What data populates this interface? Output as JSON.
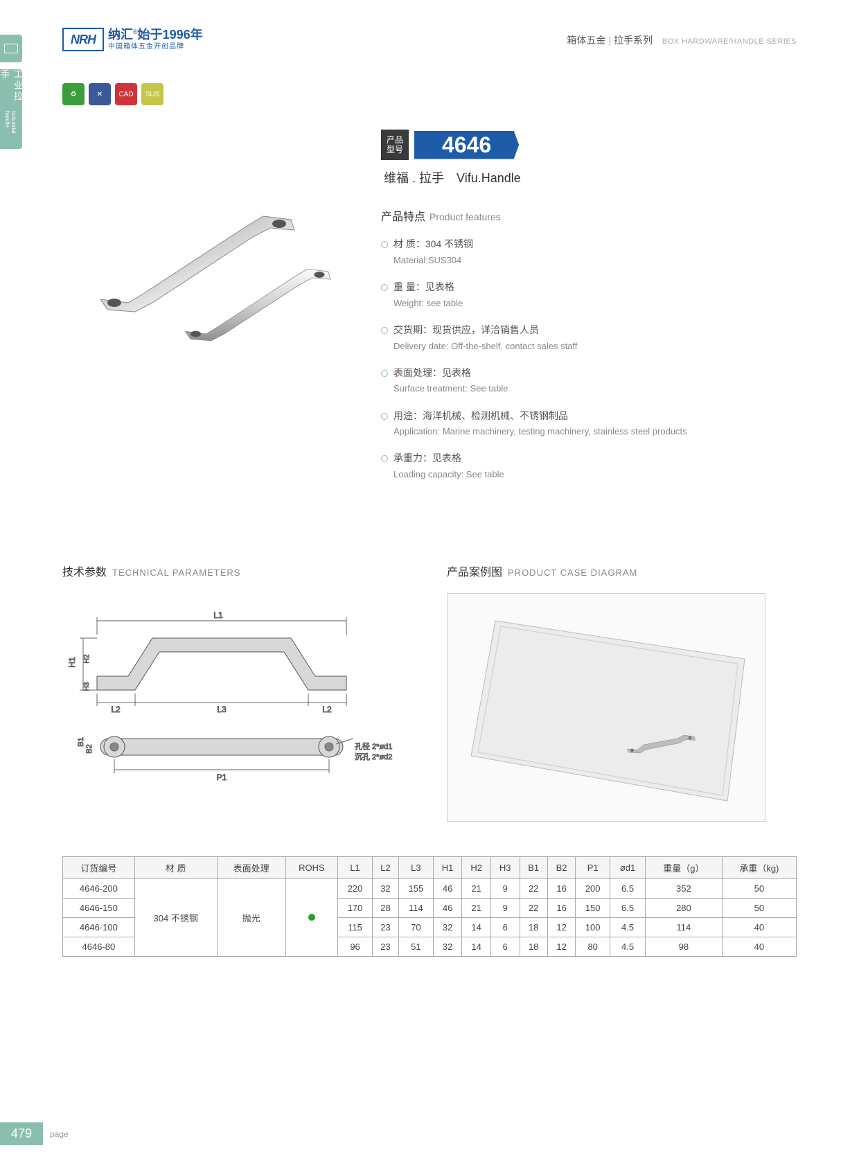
{
  "header": {
    "logo_text": "NRH",
    "brand_cn": "纳汇",
    "brand_reg": "®",
    "brand_since": "始于1996年",
    "brand_sub": "中国箱体五金开创品牌",
    "category_cn1": "箱体五金",
    "category_cn2": "拉手系列",
    "category_en": "BOX HARDWARE/HANDLE SERIES"
  },
  "sidebar": {
    "label_cn": "工业拉手",
    "label_en": "Industrial handle"
  },
  "icons": {
    "i1": "♻",
    "i2": "✕",
    "i3": "CAD",
    "i4": "SUS"
  },
  "model": {
    "label_l1": "产品",
    "label_l2": "型号",
    "number": "4646",
    "name_cn": "维福 . 拉手",
    "name_en": "Vifu.Handle"
  },
  "features": {
    "title_cn": "产品特点",
    "title_en": "Product features",
    "items": [
      {
        "cn": "材   质：304 不锈钢",
        "en": "Material:SUS304"
      },
      {
        "cn": "重   量：见表格",
        "en": "Weight: see table"
      },
      {
        "cn": "交货期：现货供应，详洽销售人员",
        "en": "Delivery date: Off-the-shelf, contact sales staff"
      },
      {
        "cn": "表面处理：见表格",
        "en": "Surface treatment:  See table"
      },
      {
        "cn": "用途：海洋机械、检测机械、不锈钢制品",
        "en": "Application: Marine machinery, testing machinery, stainless steel products"
      },
      {
        "cn": "承重力：见表格",
        "en": "Loading capacity: See table"
      }
    ]
  },
  "sections": {
    "tech_cn": "技术参数",
    "tech_en": "TECHNICAL PARAMETERS",
    "case_cn": "产品案例图",
    "case_en": "PRODUCT CASE DIAGRAM"
  },
  "diagram_labels": {
    "L1": "L1",
    "L2": "L2",
    "L3": "L3",
    "H1": "H1",
    "H2": "H2",
    "H3": "H3",
    "B1": "B1",
    "B2": "B2",
    "P1": "P1",
    "hole1": "孔径 2*ød1",
    "hole2": "沉孔 2*ød2"
  },
  "table": {
    "headers": [
      "订货编号",
      "材   质",
      "表面处理",
      "ROHS",
      "L1",
      "L2",
      "L3",
      "H1",
      "H2",
      "H3",
      "B1",
      "B2",
      "P1",
      "ød1",
      "重量（g）",
      "承重（kg)"
    ],
    "material": "304 不锈钢",
    "surface": "抛光",
    "rows": [
      {
        "code": "4646-200",
        "L1": "220",
        "L2": "32",
        "L3": "155",
        "H1": "46",
        "H2": "21",
        "H3": "9",
        "B1": "22",
        "B2": "16",
        "P1": "200",
        "d1": "6.5",
        "wt": "352",
        "load": "50"
      },
      {
        "code": "4646-150",
        "L1": "170",
        "L2": "28",
        "L3": "114",
        "H1": "46",
        "H2": "21",
        "H3": "9",
        "B1": "22",
        "B2": "16",
        "P1": "150",
        "d1": "6.5",
        "wt": "280",
        "load": "50"
      },
      {
        "code": "4646-100",
        "L1": "115",
        "L2": "23",
        "L3": "70",
        "H1": "32",
        "H2": "14",
        "H3": "6",
        "B1": "18",
        "B2": "12",
        "P1": "100",
        "d1": "4.5",
        "wt": "114",
        "load": "40"
      },
      {
        "code": "4646-80",
        "L1": "96",
        "L2": "23",
        "L3": "51",
        "H1": "32",
        "H2": "14",
        "H3": "6",
        "B1": "18",
        "B2": "12",
        "P1": "80",
        "d1": "4.5",
        "wt": "98",
        "load": "40"
      }
    ]
  },
  "page": {
    "number": "479",
    "label": "page"
  }
}
